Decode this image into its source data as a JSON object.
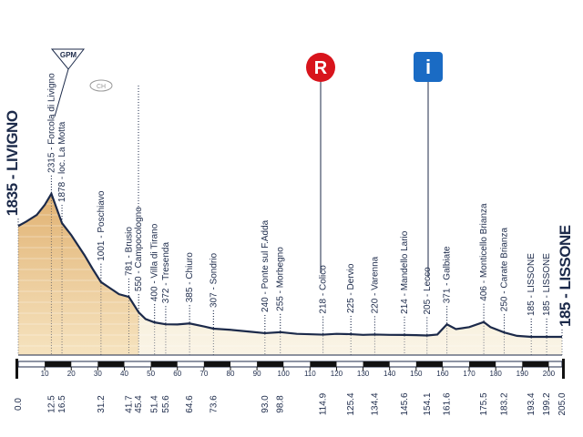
{
  "chart_data": {
    "type": "area",
    "waypoints": {
      "x": [
        0,
        12.5,
        16.5,
        31.2,
        41.7,
        45.4,
        51.4,
        55.6,
        64.6,
        73.6,
        93,
        98.8,
        114.9,
        125.4,
        134.4,
        145.6,
        154.1,
        161.6,
        175.5,
        183.2,
        193.4,
        199.2,
        205
      ],
      "x_labels": [
        "0.0",
        "12.5",
        "16.5",
        "31.2",
        "41.7",
        "45.4",
        "51.4",
        "55.6",
        "64.6",
        "73.6",
        "93.0",
        "98.8",
        "114.9",
        "125.4",
        "134.4",
        "145.6",
        "154.1",
        "161.6",
        "175.5",
        "183.2",
        "193.4",
        "199.2",
        "205.0"
      ],
      "values": [
        1835,
        2315,
        1878,
        1001,
        781,
        550,
        400,
        372,
        385,
        307,
        240,
        255,
        218,
        225,
        220,
        214,
        205,
        371,
        406,
        250,
        185,
        185,
        185
      ],
      "value_labels": [
        "1835 - LIVIGNO",
        "2315 - Forcola di Livigno",
        "1878 - loc. La Motta",
        "1001 - Poschiavo",
        "781 - Brusio",
        "550 - Campocologno",
        "400 - Villa di Tirano",
        "372 - Tresenda",
        "385 - Chiuro",
        "307 - Sondrio",
        "240 - Ponte sul F.Adda",
        "255 - Morbegno",
        "218 - Colico",
        "225 - Dervio",
        "220 - Varenna",
        "214 - Mandello Lario",
        "205 - Lecco",
        "371 - Galbiate",
        "406 - Monticello Brianza",
        "250 - Carate Brianza",
        "185 - LISSONE",
        "185 - LISSONE",
        "185 - LISSONE"
      ]
    },
    "profile": {
      "x": [
        0,
        3,
        7,
        10,
        12.5,
        14,
        16.5,
        20,
        25,
        28,
        31.2,
        35,
        38,
        41.7,
        43,
        45.4,
        48,
        51.4,
        55.6,
        60,
        64.6,
        70,
        73.6,
        80,
        88,
        93,
        98.8,
        105,
        114.9,
        120,
        125.4,
        130,
        134.4,
        140,
        145.6,
        150,
        154.1,
        158,
        161.6,
        165,
        170,
        175.5,
        178,
        183.2,
        188,
        193.4,
        199.2,
        205
      ],
      "values": [
        1835,
        1900,
        2000,
        2150,
        2315,
        2150,
        1878,
        1700,
        1400,
        1200,
        1001,
        900,
        820,
        781,
        700,
        550,
        450,
        400,
        372,
        370,
        385,
        340,
        307,
        290,
        260,
        240,
        255,
        230,
        218,
        230,
        225,
        215,
        220,
        215,
        214,
        210,
        205,
        220,
        371,
        300,
        330,
        406,
        330,
        250,
        200,
        185,
        185,
        185
      ],
      "color": "#1c2a4a"
    },
    "xlim": [
      0,
      205
    ],
    "ylim": [
      -86,
      5200
    ],
    "xticks": [
      10,
      20,
      30,
      40,
      50,
      60,
      70,
      80,
      90,
      100,
      110,
      120,
      130,
      140,
      150,
      160,
      170,
      180,
      190,
      200
    ],
    "markers": [
      "GPM",
      "CH",
      "R",
      "i"
    ]
  }
}
